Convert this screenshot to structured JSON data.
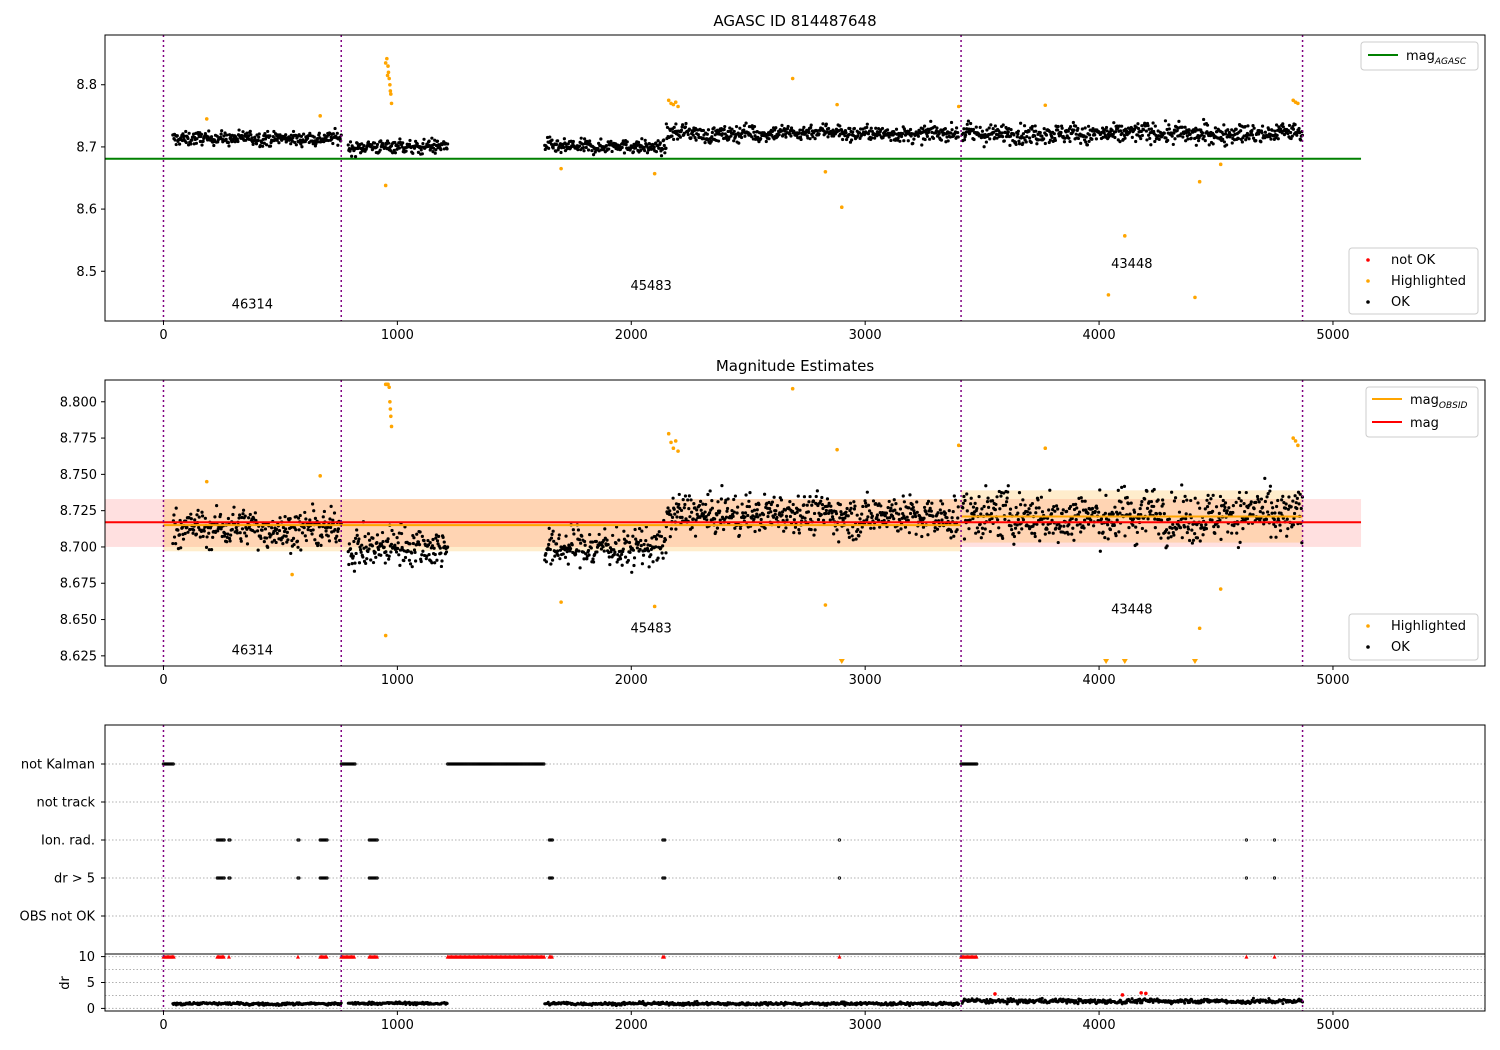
{
  "chart_data": [
    {
      "type": "scatter",
      "title": "AGASC ID 814487648",
      "xlim": [
        -250,
        5650
      ],
      "ylim": [
        8.42,
        8.88
      ],
      "xticks": [
        0,
        1000,
        2000,
        3000,
        4000,
        5000
      ],
      "yticks": [
        8.5,
        8.6,
        8.7,
        8.8
      ],
      "vlines": [
        0,
        760,
        3410,
        4870
      ],
      "obsid_labels": [
        {
          "text": "46314",
          "x": 380,
          "y": 8.44
        },
        {
          "text": "45483",
          "x": 2085,
          "y": 8.47
        },
        {
          "text": "43448",
          "x": 4140,
          "y": 8.505
        }
      ],
      "hlines": [
        {
          "name": "mag_AGASC",
          "value": 8.681,
          "x": [
            -250,
            5120
          ],
          "color": "#008000"
        }
      ],
      "segments": [
        {
          "x": [
            40,
            760
          ],
          "level": 8.713,
          "spread": 0.01
        },
        {
          "x": [
            790,
            1215
          ],
          "level": 8.7,
          "spread": 0.01
        },
        {
          "x": [
            1630,
            2150
          ],
          "level": 8.7,
          "spread": 0.01
        },
        {
          "x": [
            2150,
            3400
          ],
          "level": 8.722,
          "spread": 0.011
        },
        {
          "x": [
            3415,
            4870
          ],
          "level": 8.722,
          "spread": 0.014
        }
      ],
      "highlighted_points": [
        [
          950,
          8.835
        ],
        [
          955,
          8.842
        ],
        [
          960,
          8.83
        ],
        [
          962,
          8.82
        ],
        [
          965,
          8.81
        ],
        [
          968,
          8.8
        ],
        [
          970,
          8.79
        ],
        [
          972,
          8.785
        ],
        [
          975,
          8.77
        ],
        [
          958,
          8.815
        ],
        [
          950,
          8.638
        ],
        [
          2160,
          8.775
        ],
        [
          2170,
          8.77
        ],
        [
          2180,
          8.768
        ],
        [
          2190,
          8.772
        ],
        [
          2200,
          8.765
        ],
        [
          2690,
          8.81
        ],
        [
          2880,
          8.768
        ],
        [
          2830,
          8.66
        ],
        [
          2900,
          8.603
        ],
        [
          2100,
          8.657
        ],
        [
          1700,
          8.665
        ],
        [
          3770,
          8.767
        ],
        [
          4040,
          8.462
        ],
        [
          4110,
          8.557
        ],
        [
          4410,
          8.458
        ],
        [
          4430,
          8.644
        ],
        [
          4520,
          8.672
        ],
        [
          4830,
          8.775
        ],
        [
          4840,
          8.772
        ],
        [
          4850,
          8.77
        ],
        [
          185,
          8.745
        ],
        [
          670,
          8.75
        ],
        [
          3400,
          8.765
        ]
      ],
      "legend_lines": [
        {
          "label": "mag",
          "sub": "AGASC",
          "color": "#008000"
        }
      ],
      "legend_points": [
        {
          "label": "not OK",
          "color": "#ff0000"
        },
        {
          "label": "Highlighted",
          "color": "#ffa500"
        },
        {
          "label": "OK",
          "color": "#000000"
        }
      ]
    },
    {
      "type": "scatter",
      "title": "Magnitude Estimates",
      "xlim": [
        -250,
        5650
      ],
      "ylim": [
        8.618,
        8.815
      ],
      "xticks": [
        0,
        1000,
        2000,
        3000,
        4000,
        5000
      ],
      "yticks": [
        8.625,
        8.65,
        8.675,
        8.7,
        8.725,
        8.75,
        8.775,
        8.8
      ],
      "vlines": [
        0,
        760,
        3410,
        4870
      ],
      "obsid_labels": [
        {
          "text": "46314",
          "x": 380,
          "y": 8.626
        },
        {
          "text": "45483",
          "x": 2085,
          "y": 8.641
        },
        {
          "text": "43448",
          "x": 4140,
          "y": 8.654
        }
      ],
      "mag": {
        "value": 8.717,
        "band": [
          8.7,
          8.733
        ],
        "x": [
          -250,
          5120
        ],
        "color": "#ff0000"
      },
      "mag_obsid": [
        {
          "x": [
            0,
            3410
          ],
          "value": 8.715,
          "band": [
            8.697,
            8.733
          ]
        },
        {
          "x": [
            3410,
            4870
          ],
          "value": 8.721,
          "band": [
            8.703,
            8.739
          ]
        }
      ],
      "segments": [
        {
          "x": [
            40,
            760
          ],
          "level": 8.713,
          "spread": 0.011
        },
        {
          "x": [
            790,
            1215
          ],
          "level": 8.7,
          "spread": 0.012
        },
        {
          "x": [
            1630,
            2150
          ],
          "level": 8.7,
          "spread": 0.012
        },
        {
          "x": [
            2150,
            3400
          ],
          "level": 8.722,
          "spread": 0.012
        },
        {
          "x": [
            3415,
            4870
          ],
          "level": 8.722,
          "spread": 0.015
        }
      ],
      "highlighted_points": [
        [
          950,
          8.812
        ],
        [
          955,
          8.812
        ],
        [
          960,
          8.812
        ],
        [
          965,
          8.81
        ],
        [
          968,
          8.8
        ],
        [
          970,
          8.795
        ],
        [
          972,
          8.79
        ],
        [
          975,
          8.783
        ],
        [
          950,
          8.639
        ],
        [
          2160,
          8.778
        ],
        [
          2170,
          8.772
        ],
        [
          2180,
          8.768
        ],
        [
          2190,
          8.773
        ],
        [
          2200,
          8.766
        ],
        [
          2690,
          8.809
        ],
        [
          2880,
          8.767
        ],
        [
          2830,
          8.66
        ],
        [
          2100,
          8.659
        ],
        [
          1700,
          8.662
        ],
        [
          3770,
          8.768
        ],
        [
          4430,
          8.644
        ],
        [
          4520,
          8.671
        ],
        [
          4830,
          8.775
        ],
        [
          4840,
          8.773
        ],
        [
          4850,
          8.77
        ],
        [
          185,
          8.745
        ],
        [
          670,
          8.749
        ],
        [
          550,
          8.681
        ],
        [
          3400,
          8.77
        ]
      ],
      "clipped_points": [
        2900,
        4030,
        4110,
        4410
      ],
      "legend_lines": [
        {
          "label": "mag",
          "sub": "OBSID",
          "color": "#ffa500"
        },
        {
          "label": "mag",
          "sub": "",
          "color": "#ff0000"
        }
      ],
      "legend_points": [
        {
          "label": "Highlighted",
          "color": "#ffa500"
        },
        {
          "label": "OK",
          "color": "#000000"
        }
      ]
    },
    {
      "type": "scatter",
      "title": "",
      "xlim": [
        -250,
        5650
      ],
      "xticks": [
        0,
        1000,
        2000,
        3000,
        4000,
        5000
      ],
      "vlines": [
        0,
        760,
        3410,
        4870
      ],
      "flag_rows": [
        "not Kalman",
        "not track",
        "Ion. rad.",
        "dr > 5",
        "OBS not OK"
      ],
      "flag_ranges": {
        "not Kalman": [
          [
            0,
            45
          ],
          [
            760,
            820
          ],
          [
            1215,
            1630
          ],
          [
            3410,
            3480
          ]
        ],
        "not track": [],
        "Ion. rad.": [
          [
            230,
            260
          ],
          [
            280,
            285
          ],
          [
            575,
            580
          ],
          [
            670,
            700
          ],
          [
            880,
            915
          ],
          [
            1650,
            1665
          ],
          [
            2135,
            2145
          ],
          [
            2890,
            2892
          ],
          [
            4630,
            4632
          ],
          [
            4750,
            4752
          ]
        ],
        "dr > 5": [
          [
            230,
            260
          ],
          [
            280,
            285
          ],
          [
            575,
            580
          ],
          [
            670,
            700
          ],
          [
            880,
            915
          ],
          [
            1650,
            1665
          ],
          [
            2135,
            2145
          ],
          [
            2890,
            2892
          ],
          [
            4630,
            4632
          ],
          [
            4750,
            4752
          ]
        ],
        "OBS not OK": []
      },
      "dr_ylim": [
        -0.5,
        10.5
      ],
      "dr_yticks": [
        0,
        5,
        10
      ],
      "dr_ylabel": "dr",
      "dr_segments": [
        {
          "x": [
            40,
            760
          ],
          "level": 0.9,
          "spread": 0.3
        },
        {
          "x": [
            790,
            1215
          ],
          "level": 1.0,
          "spread": 0.3
        },
        {
          "x": [
            1630,
            3400
          ],
          "level": 0.9,
          "spread": 0.35
        },
        {
          "x": [
            3415,
            4870
          ],
          "level": 1.4,
          "spread": 0.5
        }
      ],
      "dr_red_ranges": [
        [
          0,
          45
        ],
        [
          230,
          260
        ],
        [
          280,
          285
        ],
        [
          575,
          580
        ],
        [
          670,
          700
        ],
        [
          760,
          820
        ],
        [
          880,
          915
        ],
        [
          1215,
          1630
        ],
        [
          1650,
          1665
        ],
        [
          2135,
          2145
        ],
        [
          2890,
          2892
        ],
        [
          3410,
          3480
        ],
        [
          4630,
          4632
        ],
        [
          4750,
          4752
        ]
      ],
      "dr_red_extra": [
        [
          3555,
          2.8
        ],
        [
          4100,
          2.6
        ],
        [
          4180,
          3.0
        ],
        [
          4200,
          2.9
        ]
      ]
    }
  ]
}
